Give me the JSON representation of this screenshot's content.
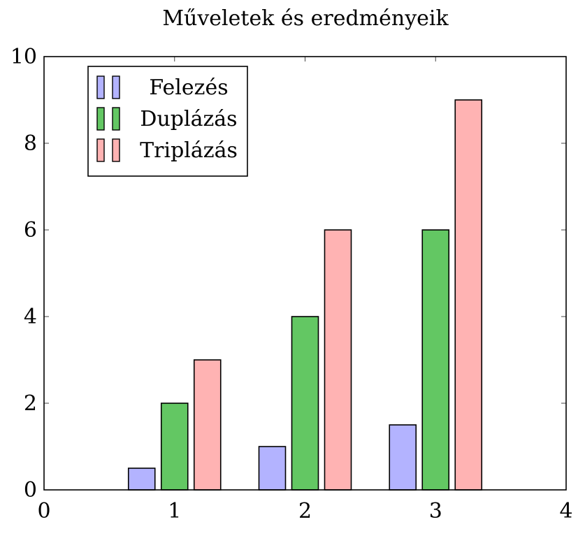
{
  "chart_data": {
    "type": "bar",
    "title": "Műveletek és eredményeik",
    "xlabel": "",
    "ylabel": "",
    "x": [
      1,
      2,
      3
    ],
    "xlim": [
      0,
      4
    ],
    "ylim": [
      0,
      10
    ],
    "xticks": [
      "0",
      "1",
      "2",
      "3",
      "4"
    ],
    "yticks": [
      "0",
      "2",
      "4",
      "6",
      "8",
      "10"
    ],
    "grid": false,
    "legend_position": "top-left",
    "series": [
      {
        "name": "Felezés",
        "values": [
          0.5,
          1,
          1.5
        ],
        "color": "#b3b3ff"
      },
      {
        "name": "Duplázás",
        "values": [
          2,
          4,
          6
        ],
        "color": "#63c763"
      },
      {
        "name": "Triplázás",
        "values": [
          3,
          6,
          9
        ],
        "color": "#ffb3b3"
      }
    ]
  }
}
